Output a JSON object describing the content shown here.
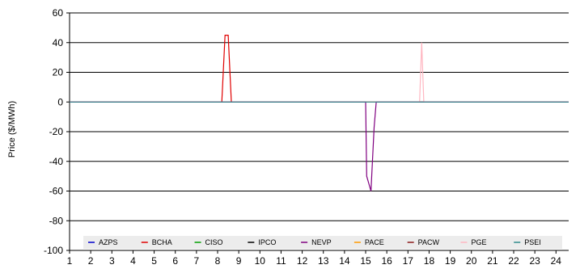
{
  "chart_data": {
    "type": "line",
    "title": "",
    "xlabel": "",
    "ylabel": "Price ($/MWh)",
    "xlim": [
      1,
      24.6
    ],
    "ylim": [
      -100,
      60
    ],
    "x_ticks": [
      1,
      2,
      3,
      4,
      5,
      6,
      7,
      8,
      9,
      10,
      11,
      12,
      13,
      14,
      15,
      16,
      17,
      18,
      19,
      20,
      21,
      22,
      23,
      24
    ],
    "y_ticks": [
      60,
      40,
      20,
      0,
      -20,
      -40,
      -60,
      -80,
      -100
    ],
    "grid": "horizontal",
    "legend_position": "bottom-inside",
    "series": [
      {
        "name": "AZPS",
        "color": "#0000cc",
        "points": [
          [
            1,
            0
          ],
          [
            24.6,
            0
          ]
        ]
      },
      {
        "name": "BCHA",
        "color": "#e00000",
        "points": [
          [
            1,
            0
          ],
          [
            8.2,
            0
          ],
          [
            8.35,
            45
          ],
          [
            8.5,
            45
          ],
          [
            8.65,
            0
          ],
          [
            24.6,
            0
          ]
        ]
      },
      {
        "name": "CISO",
        "color": "#00a000",
        "points": [
          [
            1,
            0
          ],
          [
            24.6,
            0
          ]
        ]
      },
      {
        "name": "IPCO",
        "color": "#000000",
        "points": [
          [
            1,
            0
          ],
          [
            24.6,
            0
          ]
        ]
      },
      {
        "name": "NEVP",
        "color": "#800080",
        "points": [
          [
            1,
            0
          ],
          [
            15.0,
            0
          ],
          [
            15.05,
            -50
          ],
          [
            15.25,
            -60
          ],
          [
            15.4,
            -17
          ],
          [
            15.5,
            0
          ],
          [
            24.6,
            0
          ]
        ]
      },
      {
        "name": "PACE",
        "color": "#ff9900",
        "points": [
          [
            1,
            0
          ],
          [
            24.6,
            0
          ]
        ]
      },
      {
        "name": "PACW",
        "color": "#8b1a1a",
        "points": [
          [
            1,
            0
          ],
          [
            24.6,
            0
          ]
        ]
      },
      {
        "name": "PGE",
        "color": "#ffb6c1",
        "points": [
          [
            1,
            0
          ],
          [
            17.55,
            0
          ],
          [
            17.65,
            40
          ],
          [
            17.75,
            0
          ],
          [
            24.6,
            0
          ]
        ]
      },
      {
        "name": "PSEI",
        "color": "#2e8b8b",
        "points": [
          [
            1,
            0
          ],
          [
            24.6,
            0
          ]
        ]
      }
    ]
  }
}
